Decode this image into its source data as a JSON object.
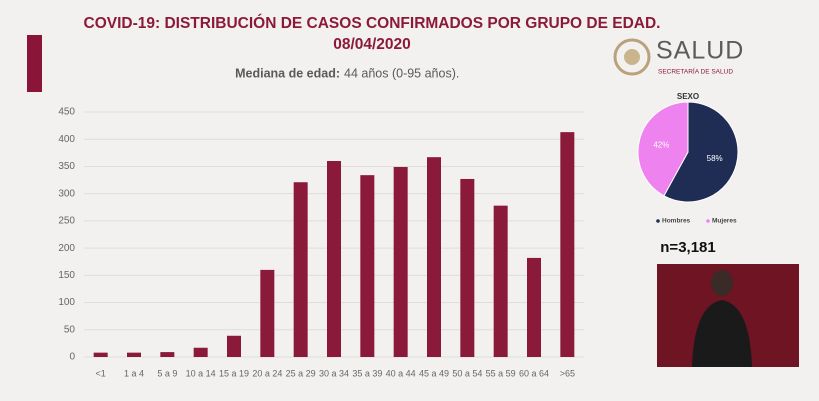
{
  "header": {
    "title": "COVID-19: DISTRIBUCIÓN DE CASOS CONFIRMADOS POR GRUPO DE EDAD.",
    "date": "08/04/2020",
    "median_label": "Mediana de edad:",
    "median_value": "44 años (0-95 años).",
    "logo_text": "SALUD",
    "logo_subtext": "SECRETARÍA DE SALUD"
  },
  "chart_data": [
    {
      "type": "bar",
      "categories": [
        "<1",
        "1 a 4",
        "5 a 9",
        "10 a 14",
        "15 a 19",
        "20 a 24",
        "25 a 29",
        "30 a 34",
        "35 a 39",
        "40 a 44",
        "45 a 49",
        "50 a 54",
        "55 a 59",
        "60 a 64",
        ">65"
      ],
      "values": [
        8,
        8,
        9,
        17,
        39,
        160,
        321,
        360,
        334,
        349,
        367,
        327,
        278,
        182,
        413
      ],
      "color": "#8b1a3a",
      "ylim": [
        0,
        450
      ],
      "yticks": [
        0,
        50,
        100,
        150,
        200,
        250,
        300,
        350,
        400,
        450
      ],
      "grid": true
    },
    {
      "type": "pie",
      "title": "SEXO",
      "categories": [
        "Hombres",
        "Mujeres"
      ],
      "values": [
        58,
        42
      ],
      "value_labels": [
        "58%",
        "42%"
      ],
      "colors": [
        "#1f2d55",
        "#ee82ee"
      ],
      "annotation": "n=3,181"
    }
  ]
}
